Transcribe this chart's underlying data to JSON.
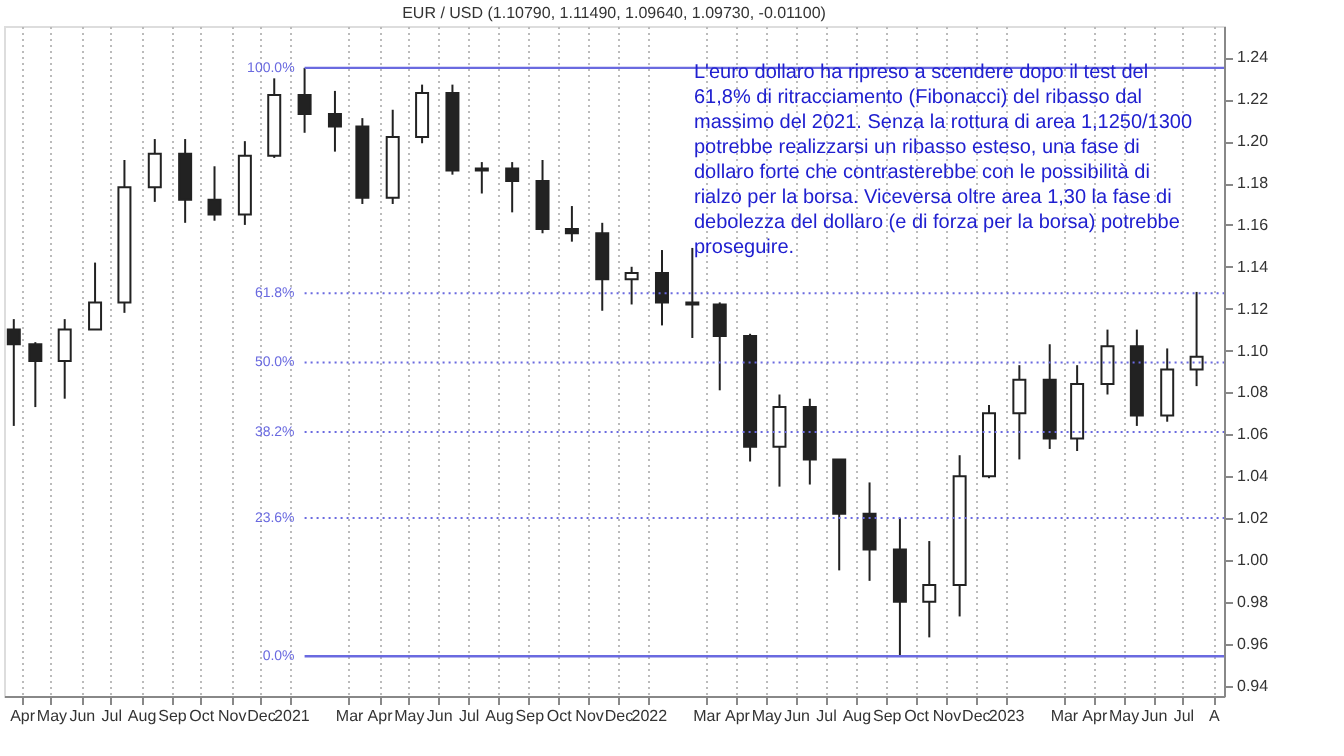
{
  "chart_data": {
    "type": "candlestick",
    "title": "EUR / USD (1.10790, 1.11490, 1.09640, 1.09730, -0.01100)",
    "x": [
      "2020-03-24",
      "2020-04-15",
      "2020-05-15",
      "2020-06-15",
      "2020-07-15",
      "2020-08-15",
      "2020-09-15",
      "2020-10-15",
      "2020-11-15",
      "2020-12-15",
      "2021-01-15",
      "2021-02-15",
      "2021-03-15",
      "2021-04-15",
      "2021-05-15",
      "2021-06-15",
      "2021-07-15",
      "2021-08-15",
      "2021-09-15",
      "2021-10-15",
      "2021-11-15",
      "2021-12-15",
      "2022-01-15",
      "2022-02-15",
      "2022-03-15",
      "2022-04-15",
      "2022-05-15",
      "2022-06-15",
      "2022-07-15",
      "2022-08-15",
      "2022-09-15",
      "2022-10-15",
      "2022-11-15",
      "2022-12-15",
      "2023-01-15",
      "2023-02-15",
      "2023-03-15",
      "2023-04-15",
      "2023-05-15",
      "2023-06-15",
      "2023-07-15"
    ],
    "ohlc": [
      [
        1.11,
        1.115,
        1.064,
        1.103
      ],
      [
        1.103,
        1.104,
        1.073,
        1.095
      ],
      [
        1.095,
        1.115,
        1.077,
        1.11
      ],
      [
        1.11,
        1.142,
        1.11,
        1.123
      ],
      [
        1.123,
        1.191,
        1.118,
        1.178
      ],
      [
        1.178,
        1.201,
        1.171,
        1.194
      ],
      [
        1.194,
        1.201,
        1.161,
        1.172
      ],
      [
        1.172,
        1.188,
        1.162,
        1.165
      ],
      [
        1.165,
        1.2,
        1.16,
        1.193
      ],
      [
        1.193,
        1.23,
        1.192,
        1.222
      ],
      [
        1.222,
        1.235,
        1.204,
        1.213
      ],
      [
        1.213,
        1.224,
        1.195,
        1.207
      ],
      [
        1.207,
        1.211,
        1.17,
        1.173
      ],
      [
        1.173,
        1.215,
        1.17,
        1.202
      ],
      [
        1.202,
        1.227,
        1.199,
        1.223
      ],
      [
        1.223,
        1.227,
        1.184,
        1.186
      ],
      [
        1.186,
        1.19,
        1.175,
        1.187
      ],
      [
        1.187,
        1.19,
        1.166,
        1.181
      ],
      [
        1.181,
        1.191,
        1.156,
        1.158
      ],
      [
        1.158,
        1.169,
        1.152,
        1.156
      ],
      [
        1.156,
        1.161,
        1.119,
        1.134
      ],
      [
        1.134,
        1.14,
        1.122,
        1.137
      ],
      [
        1.137,
        1.148,
        1.112,
        1.123
      ],
      [
        1.123,
        1.149,
        1.106,
        1.122
      ],
      [
        1.122,
        1.123,
        1.081,
        1.107
      ],
      [
        1.107,
        1.108,
        1.047,
        1.054
      ],
      [
        1.054,
        1.079,
        1.035,
        1.073
      ],
      [
        1.073,
        1.077,
        1.036,
        1.048
      ],
      [
        1.048,
        1.048,
        0.995,
        1.022
      ],
      [
        1.022,
        1.037,
        0.99,
        1.005
      ],
      [
        1.005,
        1.02,
        0.954,
        0.98
      ],
      [
        0.98,
        1.009,
        0.963,
        0.988
      ],
      [
        0.988,
        1.05,
        0.973,
        1.04
      ],
      [
        1.04,
        1.074,
        1.039,
        1.07
      ],
      [
        1.07,
        1.093,
        1.048,
        1.086
      ],
      [
        1.086,
        1.103,
        1.053,
        1.058
      ],
      [
        1.058,
        1.093,
        1.052,
        1.084
      ],
      [
        1.084,
        1.11,
        1.079,
        1.102
      ],
      [
        1.102,
        1.11,
        1.064,
        1.069
      ],
      [
        1.069,
        1.101,
        1.066,
        1.091
      ],
      [
        1.091,
        1.128,
        1.083,
        1.097
      ]
    ],
    "color": "#222222",
    "xlim": [
      "2020-03-14",
      "2023-08-12"
    ],
    "xticks": [
      {
        "value": "2020-04-01",
        "label": "Apr"
      },
      {
        "value": "2020-05-01",
        "label": "May"
      },
      {
        "value": "2020-06-01",
        "label": "Jun"
      },
      {
        "value": "2020-07-01",
        "label": "Jul"
      },
      {
        "value": "2020-08-01",
        "label": "Aug"
      },
      {
        "value": "2020-09-01",
        "label": "Sep"
      },
      {
        "value": "2020-10-01",
        "label": "Oct"
      },
      {
        "value": "2020-11-01",
        "label": "Nov"
      },
      {
        "value": "2020-12-01",
        "label": "Dec"
      },
      {
        "value": "2021-01-01",
        "label": "2021"
      },
      {
        "value": "2021-03-01",
        "label": "Mar"
      },
      {
        "value": "2021-04-01",
        "label": "Apr"
      },
      {
        "value": "2021-05-01",
        "label": "May"
      },
      {
        "value": "2021-06-01",
        "label": "Jun"
      },
      {
        "value": "2021-07-01",
        "label": "Jul"
      },
      {
        "value": "2021-08-01",
        "label": "Aug"
      },
      {
        "value": "2021-09-01",
        "label": "Sep"
      },
      {
        "value": "2021-10-01",
        "label": "Oct"
      },
      {
        "value": "2021-11-01",
        "label": "Nov"
      },
      {
        "value": "2021-12-01",
        "label": "Dec"
      },
      {
        "value": "2022-01-01",
        "label": "2022"
      },
      {
        "value": "2022-03-01",
        "label": "Mar"
      },
      {
        "value": "2022-04-01",
        "label": "Apr"
      },
      {
        "value": "2022-05-01",
        "label": "May"
      },
      {
        "value": "2022-06-01",
        "label": "Jun"
      },
      {
        "value": "2022-07-01",
        "label": "Jul"
      },
      {
        "value": "2022-08-01",
        "label": "Aug"
      },
      {
        "value": "2022-09-01",
        "label": "Sep"
      },
      {
        "value": "2022-10-01",
        "label": "Oct"
      },
      {
        "value": "2022-11-01",
        "label": "Nov"
      },
      {
        "value": "2022-12-01",
        "label": "Dec"
      },
      {
        "value": "2023-01-01",
        "label": "2023"
      },
      {
        "value": "2023-03-01",
        "label": "Mar"
      },
      {
        "value": "2023-04-01",
        "label": "Apr"
      },
      {
        "value": "2023-05-01",
        "label": "May"
      },
      {
        "value": "2023-06-01",
        "label": "Jun"
      },
      {
        "value": "2023-07-01",
        "label": "Jul"
      },
      {
        "value": "2023-08-01",
        "label": "A"
      }
    ],
    "ylim": [
      0.935,
      1.255
    ],
    "yticks": [
      {
        "value": 0.94,
        "label": "0.94"
      },
      {
        "value": 0.96,
        "label": "0.96"
      },
      {
        "value": 0.98,
        "label": "0.98"
      },
      {
        "value": 1.0,
        "label": "1.00"
      },
      {
        "value": 1.02,
        "label": "1.02"
      },
      {
        "value": 1.04,
        "label": "1.04"
      },
      {
        "value": 1.06,
        "label": "1.06"
      },
      {
        "value": 1.08,
        "label": "1.08"
      },
      {
        "value": 1.1,
        "label": "1.10"
      },
      {
        "value": 1.12,
        "label": "1.12"
      },
      {
        "value": 1.14,
        "label": "1.14"
      },
      {
        "value": 1.16,
        "label": "1.16"
      },
      {
        "value": 1.18,
        "label": "1.18"
      },
      {
        "value": 1.2,
        "label": "1.20"
      },
      {
        "value": 1.22,
        "label": "1.22"
      },
      {
        "value": 1.24,
        "label": "1.24"
      }
    ],
    "grid": "x",
    "ref_lines": [
      {
        "axis": "y",
        "value": 1.235,
        "color": "#6a6ae0",
        "line_style": "solid"
      },
      {
        "axis": "y",
        "value": 1.1274,
        "color": "#6a6ae0",
        "line_style": "dotted"
      },
      {
        "axis": "y",
        "value": 1.0943,
        "color": "#6a6ae0",
        "line_style": "dotted"
      },
      {
        "axis": "y",
        "value": 1.0611,
        "color": "#6a6ae0",
        "line_style": "dotted"
      },
      {
        "axis": "y",
        "value": 1.02,
        "color": "#6a6ae0",
        "line_style": "dotted"
      },
      {
        "axis": "y",
        "value": 0.954,
        "color": "#6a6ae0",
        "line_style": "solid"
      }
    ],
    "annotations": [
      {
        "text": "100.0%",
        "x": "2021-01-15",
        "y": 1.235
      },
      {
        "text": "61.8%",
        "x": "2021-01-15",
        "y": 1.1274
      },
      {
        "text": "50.0%",
        "x": "2021-01-15",
        "y": 1.0943
      },
      {
        "text": "38.2%",
        "x": "2021-01-15",
        "y": 1.0611
      },
      {
        "text": "23.6%",
        "x": "2021-01-15",
        "y": 1.02
      },
      {
        "text": "0.0%",
        "x": "2021-01-15",
        "y": 0.954
      },
      "L'euro dollaro ha ripreso a scendere dopo il test del 61,8% di ritracciamento (Fibonacci) del ribasso dal massimo del 2021. Senza la rottura di area 1,1250/1300 potrebbe realizzarsi un ribasso esteso, una fase di dollaro forte che contrasterebbe con le possibilità di rialzo per la borsa. Viceversa oltre area 1,30 la fase di debolezza del dollaro (e di forza per la borsa) potrebbe proseguire."
    ]
  }
}
